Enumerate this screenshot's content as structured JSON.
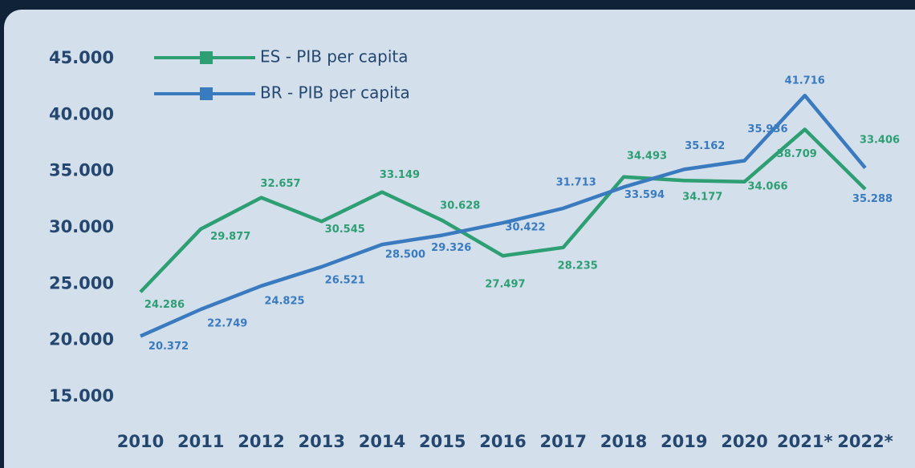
{
  "chart_data": {
    "type": "line",
    "categories": [
      "2010",
      "2011",
      "2012",
      "2013",
      "2014",
      "2015",
      "2016",
      "2017",
      "2018",
      "2019",
      "2020",
      "2021*",
      "2022*"
    ],
    "series": [
      {
        "name": "ES - PIB per capita",
        "color": "#2e9e73",
        "values": [
          24286,
          29877,
          32657,
          30545,
          33149,
          30628,
          27497,
          28235,
          34493,
          34177,
          34066,
          38709,
          33406
        ],
        "value_labels": [
          "24.286",
          "29.877",
          "32.657",
          "30.545",
          "33.149",
          "30.628",
          "27.497",
          "28.235",
          "34.493",
          "34.177",
          "34.066",
          "38.709",
          "33.406"
        ]
      },
      {
        "name": "BR - PIB per capita",
        "color": "#3a7abf",
        "values": [
          20372,
          22749,
          24825,
          26521,
          28500,
          29326,
          30422,
          31713,
          33594,
          35162,
          35936,
          41716,
          35288
        ],
        "value_labels": [
          "20.372",
          "22.749",
          "24.825",
          "26.521",
          "28.500",
          "29.326",
          "30.422",
          "31.713",
          "33.594",
          "35.162",
          "35.936",
          "41.716",
          "35.288"
        ]
      }
    ],
    "ylim": [
      15000,
      45000
    ],
    "yticks": [
      {
        "value": 15000,
        "label": "15.000"
      },
      {
        "value": 20000,
        "label": "20.000"
      },
      {
        "value": 25000,
        "label": "25.000"
      },
      {
        "value": 30000,
        "label": "30.000"
      },
      {
        "value": 35000,
        "label": "35.000"
      },
      {
        "value": 40000,
        "label": "40.000"
      },
      {
        "value": 45000,
        "label": "45.000"
      }
    ],
    "grid": false
  }
}
